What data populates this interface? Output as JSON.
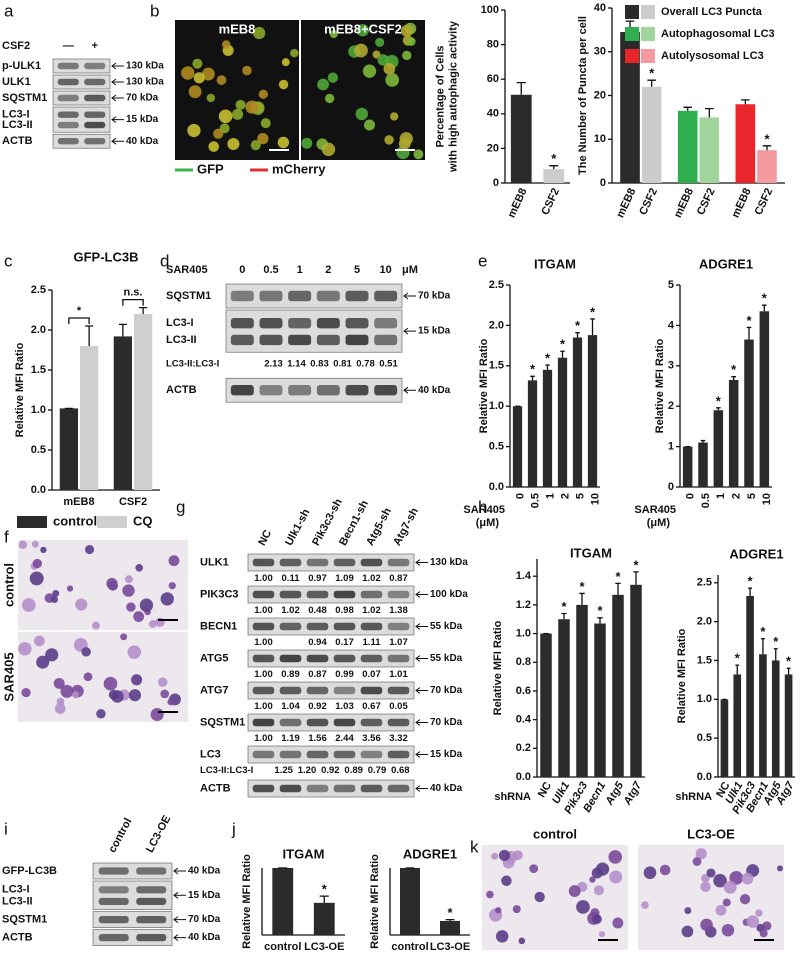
{
  "panel_labels": [
    "a",
    "b",
    "c",
    "d",
    "e",
    "f",
    "g",
    "h",
    "i",
    "j",
    "k"
  ],
  "images": [
    {
      "titles": [
        "mEB8",
        "mEB8+CSF2"
      ],
      "legend": [
        {
          "name": "GFP",
          "color": "#3cb44b"
        },
        {
          "name": "mCherry",
          "color": "#e03030"
        }
      ]
    },
    {
      "titles": [
        "control",
        "SAR405"
      ]
    },
    {
      "titles": [
        "control",
        "LC3-OE"
      ]
    }
  ],
  "blots": [
    {
      "header": "CSF2",
      "lanes": [
        "—",
        "+"
      ],
      "rows": [
        {
          "label": "p-ULK1",
          "marker": "130 kDa"
        },
        {
          "label": "ULK1",
          "marker": "130 kDa"
        },
        {
          "label": "SQSTM1",
          "marker": "70 kDa"
        },
        {
          "label": [
            "LC3-I",
            "LC3-II"
          ],
          "marker": "15 kDa"
        },
        {
          "label": "ACTB",
          "marker": "40 kDa"
        }
      ]
    },
    {
      "header": "SAR405",
      "lanes": [
        "0",
        "0.5",
        "1",
        "2",
        "5",
        "10"
      ],
      "unit": "μM",
      "rows": [
        {
          "label": "SQSTM1",
          "marker": "70 kDa"
        },
        {
          "label": [
            "LC3-I",
            "LC3-II"
          ],
          "marker": "15 kDa"
        },
        {
          "label": "LC3-II:LC3-I",
          "quant": [
            "2.13",
            "1.14",
            "0.83",
            "0.81",
            "0.78",
            "0.51"
          ]
        },
        {
          "label": "ACTB",
          "marker": "40 kDa"
        }
      ]
    },
    {
      "lanes": [
        "NC",
        "Ulk1-sh",
        "Pik3c3-sh",
        "Becn1-sh",
        "Atg5-sh",
        "Atg7-sh"
      ],
      "rows": [
        {
          "label": "ULK1",
          "marker": "130 kDa",
          "quant": [
            "1.00",
            "0.11",
            "0.97",
            "1.09",
            "1.02",
            "0.87"
          ]
        },
        {
          "label": "PIK3C3",
          "marker": "100 kDa",
          "quant": [
            "1.00",
            "1.02",
            "0.48",
            "0.98",
            "1.02",
            "1.38"
          ]
        },
        {
          "label": "BECN1",
          "marker": "55 kDa",
          "quant": [
            "1.00",
            null,
            "0.94",
            "0.17",
            "1.11",
            "1.07"
          ]
        },
        {
          "label": "ATG5",
          "marker": "55 kDa",
          "quant": [
            "1.00",
            "0.89",
            "0.87",
            "0.99",
            "0.07",
            "1.01"
          ]
        },
        {
          "label": "ATG7",
          "marker": "70 kDa",
          "quant": [
            "1.00",
            "1.04",
            "0.92",
            "1.03",
            "0.67",
            "0.05"
          ]
        },
        {
          "label": "SQSTM1",
          "marker": "70 kDa",
          "quant": [
            "1.00",
            "1.19",
            "1.56",
            "2.44",
            "3.56",
            "3.32"
          ]
        },
        {
          "label": "LC3",
          "marker": "15 kDa"
        },
        {
          "label": "LC3-II:LC3-I",
          "quant": [
            "1.25",
            "1.20",
            "0.92",
            "0.89",
            "0.79",
            "0.68"
          ]
        },
        {
          "label": "ACTB",
          "marker": "40 kDa"
        }
      ]
    },
    {
      "lanes": [
        "control",
        "LC3-OE"
      ],
      "rows": [
        {
          "label": "GFP-LC3B",
          "marker": "40 kDa"
        },
        {
          "label": [
            "LC3-I",
            "LC3-II"
          ],
          "marker": "15 kDa"
        },
        {
          "label": "SQSTM1",
          "marker": "70 kDa"
        },
        {
          "label": "ACTB",
          "marker": "40 kDa"
        }
      ]
    }
  ],
  "chart_data": [
    {
      "type": "bar",
      "ylabel": [
        "Percentage of Cells",
        "with high autophagic activity"
      ],
      "categories": [
        "mEB8",
        "CSF2"
      ],
      "series": [
        {
          "color": "#2b2b2b",
          "colors": [
            "#2b2b2b",
            "#cccccc"
          ],
          "values": [
            51,
            8
          ],
          "errors": [
            7,
            2
          ],
          "significance": [
            null,
            "*"
          ]
        }
      ],
      "ylim": [
        0,
        100
      ],
      "yticks": [
        0,
        20,
        40,
        60,
        80,
        100
      ]
    },
    {
      "type": "bar",
      "ylabel": [
        "The Number of Puncta per cell"
      ],
      "categories": [
        "mEB8",
        "CSF2"
      ],
      "legend": "top-right",
      "series": [
        {
          "name": "Overall LC3 Puncta",
          "colors": [
            "#2b2b2b",
            "#cccccc"
          ],
          "values": [
            34.5,
            22
          ],
          "errors": [
            2.5,
            1.5
          ],
          "significance": [
            null,
            "*"
          ]
        },
        {
          "name": "Autophagosomal LC3",
          "colors": [
            "#2fae4e",
            "#9fd59a"
          ],
          "values": [
            16.5,
            15
          ],
          "errors": [
            0.8,
            2
          ]
        },
        {
          "name": "Autolysosomal LC3",
          "colors": [
            "#e8262c",
            "#f29a9e"
          ],
          "values": [
            18,
            7.5
          ],
          "errors": [
            1,
            1
          ],
          "significance": [
            null,
            "*"
          ]
        }
      ],
      "ylim": [
        0,
        40
      ],
      "yticks": [
        0,
        10,
        20,
        30,
        40
      ]
    },
    {
      "type": "bar",
      "title": "GFP-LC3B",
      "ylabel": [
        "Relative MFI Ratio"
      ],
      "categories": [
        "mEB8",
        "CSF2"
      ],
      "legend": "bottom",
      "series": [
        {
          "name": "control",
          "color": "#2b2b2b",
          "values": [
            1.02,
            1.92
          ],
          "errors": [
            0,
            0.15
          ]
        },
        {
          "name": "CQ",
          "color": "#cfcfcf",
          "values": [
            1.8,
            2.2
          ],
          "errors": [
            0.25,
            0.08
          ]
        }
      ],
      "comparisons": [
        "*",
        "n.s."
      ],
      "ylim": [
        0,
        2.5
      ],
      "yticks": [
        {
          "value": 0,
          "label": "0.0"
        },
        0.5,
        {
          "value": 1,
          "label": "1.0"
        },
        1.5,
        {
          "value": 2,
          "label": "2.0"
        },
        2.5
      ]
    },
    {
      "type": "bar",
      "title": "ITGAM",
      "ylabel": [
        "Relative MFI Ratio"
      ],
      "xlabel": [
        "SAR405",
        "(μM)"
      ],
      "categories": [
        "0",
        "0.5",
        "1",
        "2",
        "5",
        "10"
      ],
      "series": [
        {
          "color": "#2b2b2b",
          "values": [
            1.0,
            1.32,
            1.45,
            1.6,
            1.85,
            1.88
          ],
          "errors": [
            0,
            0.05,
            0.06,
            0.08,
            0.06,
            0.2
          ],
          "significance": [
            null,
            "*",
            "*",
            "*",
            "*",
            "*"
          ]
        }
      ],
      "ylim": [
        0,
        2.5
      ],
      "yticks": [
        {
          "value": 0,
          "label": "0.0"
        },
        0.5,
        {
          "value": 1,
          "label": "1.0"
        },
        1.5,
        {
          "value": 2,
          "label": "2.0"
        },
        2.5
      ]
    },
    {
      "type": "bar",
      "title": "ADGRE1",
      "ylabel": [
        "Relative MFI Ratio"
      ],
      "xlabel": [
        "SAR405",
        "(μM)"
      ],
      "categories": [
        "0",
        "0.5",
        "1",
        "2",
        "5",
        "10"
      ],
      "series": [
        {
          "color": "#2b2b2b",
          "values": [
            1.0,
            1.1,
            1.9,
            2.65,
            3.65,
            4.35
          ],
          "errors": [
            0,
            0.05,
            0.06,
            0.08,
            0.3,
            0.15
          ],
          "significance": [
            null,
            null,
            "*",
            "*",
            "*",
            "*"
          ]
        }
      ],
      "ylim": [
        0,
        5
      ],
      "yticks": [
        0,
        1,
        2,
        3,
        4,
        5
      ]
    },
    {
      "type": "bar",
      "title": "ITGAM",
      "ylabel": [
        "Relative MFI Ratio"
      ],
      "xlabel": [
        "shRNA"
      ],
      "categories": [
        "NC",
        "Ulk1",
        "Pik3c3",
        "Becn1",
        "Atg5",
        "Atg7"
      ],
      "series": [
        {
          "color": "#2b2b2b",
          "values": [
            1.0,
            1.1,
            1.2,
            1.07,
            1.27,
            1.34
          ],
          "errors": [
            0,
            0.04,
            0.08,
            0.04,
            0.08,
            0.09
          ],
          "significance": [
            null,
            "*",
            "*",
            "*",
            "*",
            "*"
          ]
        }
      ],
      "ylim": [
        0,
        1.52
      ],
      "yticks": [
        {
          "value": 0,
          "label": "0.0"
        },
        0.2,
        0.4,
        0.6,
        0.8,
        {
          "value": 1,
          "label": "1.0"
        },
        1.2,
        1.4
      ]
    },
    {
      "type": "bar",
      "title": "ADGRE1",
      "ylabel": [
        "Relative MFI Ratio"
      ],
      "xlabel": [
        "shRNA"
      ],
      "categories": [
        "NC",
        "Ulk1",
        "Pik3c3",
        "Becn1",
        "Atg5",
        "Atg7"
      ],
      "series": [
        {
          "color": "#2b2b2b",
          "values": [
            1.0,
            1.32,
            2.33,
            1.58,
            1.5,
            1.32
          ],
          "errors": [
            0,
            0.12,
            0.1,
            0.2,
            0.15,
            0.08
          ],
          "significance": [
            null,
            "*",
            "*",
            "*",
            "*",
            "*"
          ]
        }
      ],
      "ylim": [
        0,
        2.6
      ],
      "yticks": [
        {
          "value": 0,
          "label": "0.0"
        },
        0.5,
        {
          "value": 1,
          "label": "1.0"
        },
        1.5,
        {
          "value": 2,
          "label": "2.0"
        },
        2.5
      ]
    },
    {
      "type": "bar",
      "title": "ITGAM",
      "ylabel": [
        "Relative MFI Ratio"
      ],
      "categories": [
        "control",
        "LC3-OE"
      ],
      "series": [
        {
          "color": "#2b2b2b",
          "values": [
            1.0,
            0.48
          ],
          "errors": [
            0,
            0.1
          ],
          "significance": [
            null,
            "*"
          ]
        }
      ],
      "ylim": [
        0,
        1
      ]
    },
    {
      "type": "bar",
      "title": "ADGRE1",
      "ylabel": [
        "Relative MFI Ratio"
      ],
      "categories": [
        "control",
        "LC3-OE"
      ],
      "series": [
        {
          "color": "#2b2b2b",
          "values": [
            1.0,
            0.21
          ],
          "errors": [
            0,
            0.02
          ],
          "significance": [
            null,
            "*"
          ]
        }
      ],
      "ylim": [
        0,
        1
      ]
    }
  ]
}
